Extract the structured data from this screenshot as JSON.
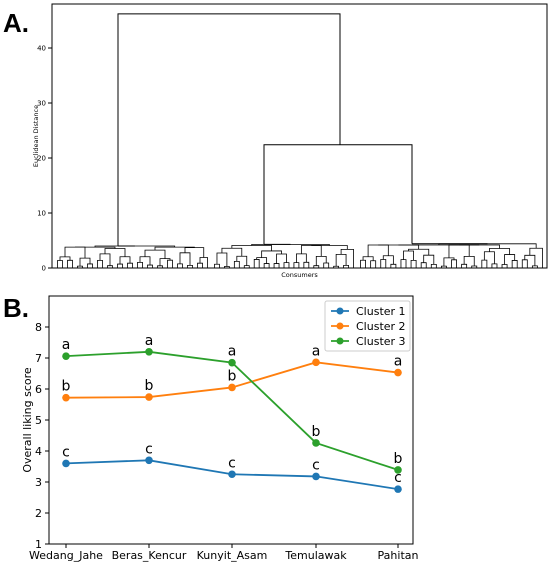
{
  "chart_data": [
    {
      "panel": "A.",
      "type": "dendrogram",
      "xlabel": "Consumers",
      "ylabel": "Euclidean Distance",
      "ylim": [
        0,
        48
      ],
      "yticks": [
        0,
        10,
        20,
        30,
        40
      ],
      "merges": [
        {
          "name": "root",
          "height": 46.2,
          "children": [
            "cluster-left",
            "cluster-right"
          ]
        },
        {
          "name": "cluster-right",
          "height": 22.4,
          "children": [
            "cluster-middle",
            "cluster-far-right"
          ]
        },
        {
          "name": "cluster-left",
          "height": 4.0
        },
        {
          "name": "cluster-middle",
          "height": 4.3
        },
        {
          "name": "cluster-far-right",
          "height": 4.4
        }
      ],
      "grid": false
    },
    {
      "panel": "B.",
      "type": "line",
      "categories": [
        "Wedang_Jahe",
        "Beras_Kencur",
        "Kunyit_Asam",
        "Temulawak",
        "Pahitan"
      ],
      "ylabel": "Overall liking score",
      "ylim": [
        1,
        9
      ],
      "yticks": [
        1,
        2,
        3,
        4,
        5,
        6,
        7,
        8
      ],
      "legend_position": "top-right",
      "grid": false,
      "series": [
        {
          "name": "Cluster 1",
          "color": "#1f77b4",
          "values": [
            3.6,
            3.7,
            3.25,
            3.18,
            2.77
          ],
          "letters": [
            "c",
            "c",
            "c",
            "c",
            "c"
          ]
        },
        {
          "name": "Cluster 2",
          "color": "#ff7f0e",
          "values": [
            5.72,
            5.74,
            6.05,
            6.86,
            6.53
          ],
          "letters": [
            "b",
            "b",
            "b",
            "a",
            "a"
          ]
        },
        {
          "name": "Cluster 3",
          "color": "#2ca02c",
          "values": [
            7.06,
            7.2,
            6.85,
            4.26,
            3.39
          ],
          "letters": [
            "a",
            "a",
            "a",
            "b",
            "b"
          ]
        }
      ]
    }
  ]
}
